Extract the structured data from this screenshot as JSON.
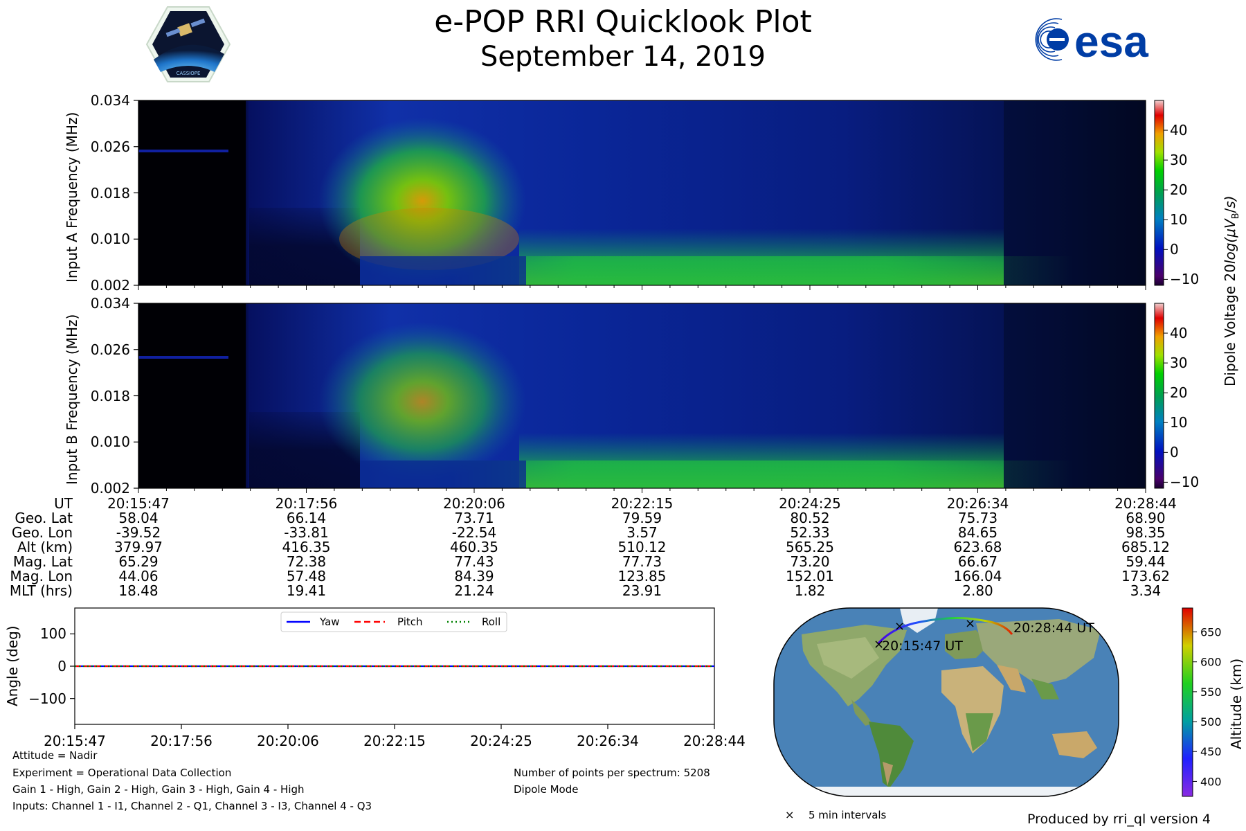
{
  "header": {
    "title": "e-POP RRI Quicklook Plot",
    "date": "September 14, 2019",
    "logo_left": "CASSIOPE",
    "logo_right": "esa"
  },
  "chart_data": [
    {
      "type": "heatmap",
      "name": "input-a-spectrogram",
      "ylabel": "Input A Frequency (MHz)",
      "yticks": [
        "0.034",
        "0.026",
        "0.018",
        "0.010",
        "0.002"
      ],
      "ylim": [
        0.002,
        0.034
      ],
      "xlim": [
        "20:15:47",
        "20:28:44"
      ]
    },
    {
      "type": "heatmap",
      "name": "input-b-spectrogram",
      "ylabel": "Input B Frequency (MHz)",
      "yticks": [
        "0.034",
        "0.026",
        "0.018",
        "0.010",
        "0.002"
      ],
      "ylim": [
        0.002,
        0.034
      ],
      "xlim": [
        "20:15:47",
        "20:28:44"
      ]
    },
    {
      "type": "line",
      "name": "attitude-plot",
      "ylabel": "Angle (deg)",
      "yticks": [
        "100",
        "0",
        "−100"
      ],
      "ylim": [
        -180,
        180
      ],
      "x": [
        "20:15:47",
        "20:17:56",
        "20:20:06",
        "20:22:15",
        "20:24:25",
        "20:26:34",
        "20:28:44"
      ],
      "series": [
        {
          "name": "Yaw",
          "color": "#0000ff",
          "style": "solid",
          "values": [
            0,
            0,
            0,
            0,
            0,
            0,
            0
          ]
        },
        {
          "name": "Pitch",
          "color": "#ff0000",
          "style": "dashed",
          "values": [
            0,
            0,
            0,
            0,
            0,
            0,
            0
          ]
        },
        {
          "name": "Roll",
          "color": "#008000",
          "style": "dotted",
          "values": [
            0,
            0,
            0,
            0,
            0,
            0,
            0
          ]
        }
      ]
    }
  ],
  "colorbar": {
    "label": "Dipole Voltage 20log(μV_B/s)",
    "label_main": "Dipole Voltage 20",
    "label_italic": "log(μV",
    "label_sub": "B",
    "label_end": "s)",
    "ticks": [
      "40",
      "30",
      "20",
      "10",
      "0",
      "−10"
    ],
    "range": [
      -12,
      50
    ]
  },
  "geo_table": {
    "headers": [
      "UT",
      "Geo. Lat",
      "Geo. Lon",
      "Alt (km)",
      "Mag. Lat",
      "Mag. Lon",
      "MLT (hrs)"
    ],
    "columns": [
      [
        "20:15:47",
        "58.04",
        "-39.52",
        "379.97",
        "65.29",
        "44.06",
        "18.48"
      ],
      [
        "20:17:56",
        "66.14",
        "-33.81",
        "416.35",
        "72.38",
        "57.48",
        "19.41"
      ],
      [
        "20:20:06",
        "73.71",
        "-22.54",
        "460.35",
        "77.43",
        "84.39",
        "21.24"
      ],
      [
        "20:22:15",
        "79.59",
        "3.57",
        "510.12",
        "77.73",
        "123.85",
        "23.91"
      ],
      [
        "20:24:25",
        "80.52",
        "52.33",
        "565.25",
        "73.20",
        "152.01",
        "1.82"
      ],
      [
        "20:26:34",
        "75.73",
        "84.65",
        "623.68",
        "66.67",
        "166.04",
        "2.80"
      ],
      [
        "20:28:44",
        "68.90",
        "98.35",
        "685.12",
        "59.44",
        "173.62",
        "3.34"
      ]
    ]
  },
  "attitude_xticks": [
    "20:15:47",
    "20:17:56",
    "20:20:06",
    "20:22:15",
    "20:24:25",
    "20:26:34",
    "20:28:44"
  ],
  "map": {
    "start_label": "20:15:47 UT",
    "end_label": "20:28:44 UT",
    "legend_marker": "×",
    "legend_text": "5 min intervals",
    "altitude_label": "Altitude (km)",
    "altitude_ticks": [
      "650",
      "600",
      "550",
      "500",
      "450",
      "400"
    ],
    "altitude_range": [
      375,
      690
    ]
  },
  "footer": {
    "attitude": "Attitude = Nadir",
    "experiment": "Experiment = Operational Data Collection",
    "gains": "Gain 1 - High, Gain 2 - High, Gain 3 - High, Gain 4 - High",
    "inputs": "Inputs: Channel 1 - I1, Channel 2 - Q1, Channel 3 - I3, Channel 4 - Q3",
    "points": "Number of points per spectrum: 5208",
    "mode": "Dipole Mode",
    "produced": "Produced by rri_ql version 4"
  },
  "colors": {
    "yaw": "#0000ff",
    "pitch": "#ff0000",
    "roll": "#008000",
    "esa_blue": "#003da5"
  }
}
